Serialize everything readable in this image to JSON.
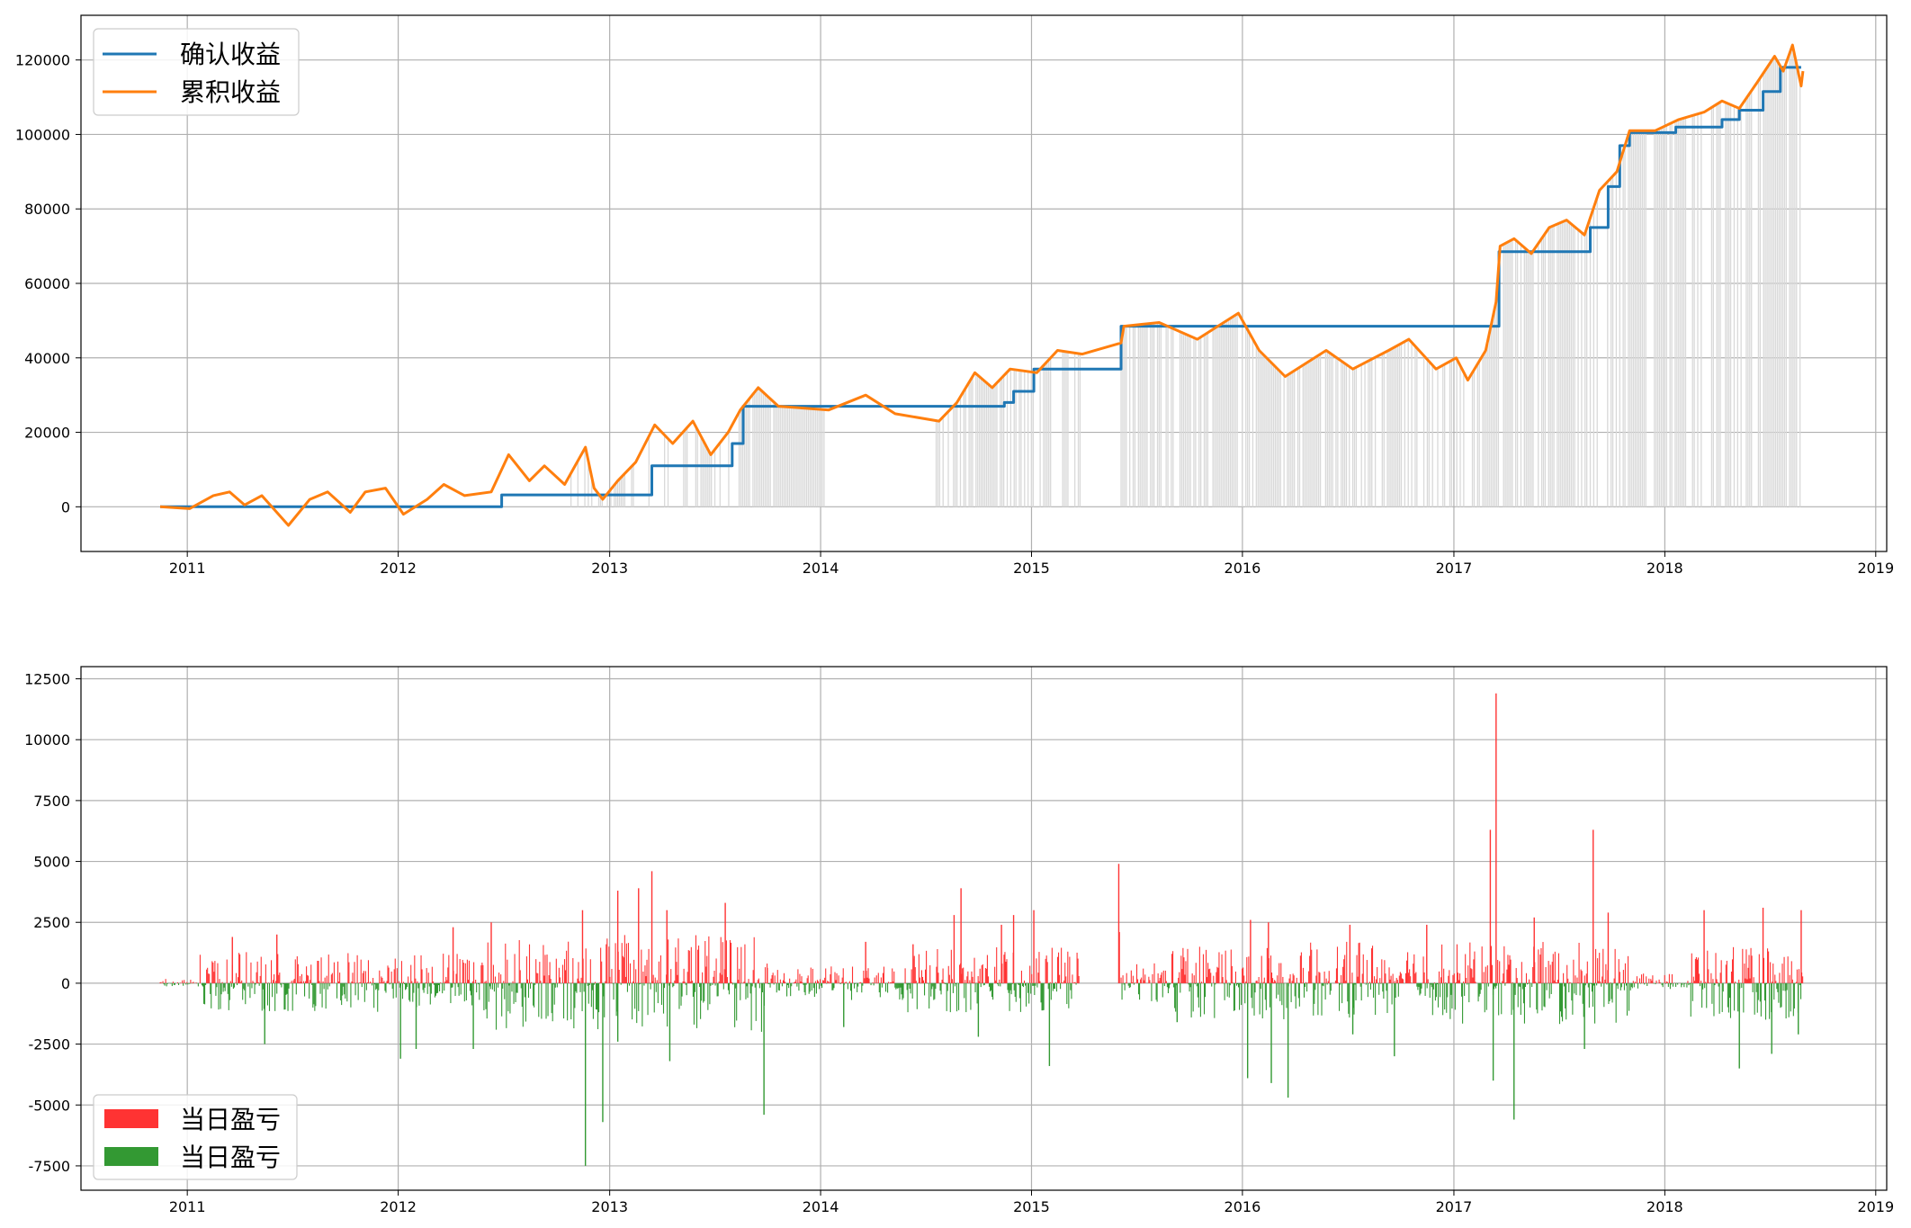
{
  "chart_data": [
    {
      "type": "line",
      "title": "",
      "xlabel": "",
      "ylabel": "",
      "x_ticks": [
        "2011",
        "2012",
        "2013",
        "2014",
        "2015",
        "2016",
        "2017",
        "2018",
        "2019"
      ],
      "y_ticks": [
        "0",
        "20000",
        "40000",
        "60000",
        "80000",
        "100000",
        "120000"
      ],
      "ylim": [
        -12000,
        132000
      ],
      "xlim": [
        "2010-07-01",
        "2019-01-20"
      ],
      "grid": true,
      "legend_position": "top-left",
      "legend": [
        {
          "label": "确认收益",
          "color": "#1f77b4"
        },
        {
          "label": "累积收益",
          "color": "#ff7f0e"
        }
      ],
      "series": [
        {
          "name": "确认收益",
          "color": "#1f77b4",
          "style": "step",
          "points": [
            [
              "2010-11-15",
              0
            ],
            [
              "2011-01-05",
              0
            ],
            [
              "2012-01-05",
              0
            ],
            [
              "2012-06-28",
              0
            ],
            [
              "2012-06-28",
              3200
            ],
            [
              "2013-03-15",
              3200
            ],
            [
              "2013-03-15",
              11000
            ],
            [
              "2013-08-01",
              11000
            ],
            [
              "2013-08-01",
              17000
            ],
            [
              "2013-08-20",
              17000
            ],
            [
              "2013-08-20",
              27000
            ],
            [
              "2014-11-15",
              27000
            ],
            [
              "2014-11-15",
              28000
            ],
            [
              "2014-12-01",
              28000
            ],
            [
              "2014-12-01",
              31000
            ],
            [
              "2015-01-05",
              31000
            ],
            [
              "2015-01-05",
              37000
            ],
            [
              "2015-06-05",
              37000
            ],
            [
              "2015-06-05",
              48500
            ],
            [
              "2017-03-20",
              48500
            ],
            [
              "2017-03-20",
              68500
            ],
            [
              "2017-08-25",
              68500
            ],
            [
              "2017-08-25",
              75000
            ],
            [
              "2017-09-25",
              75000
            ],
            [
              "2017-09-25",
              86000
            ],
            [
              "2017-10-15",
              86000
            ],
            [
              "2017-10-15",
              97000
            ],
            [
              "2017-11-01",
              97000
            ],
            [
              "2017-11-01",
              100500
            ],
            [
              "2018-01-20",
              100500
            ],
            [
              "2018-01-20",
              102000
            ],
            [
              "2018-04-10",
              102000
            ],
            [
              "2018-04-10",
              104000
            ],
            [
              "2018-05-10",
              104000
            ],
            [
              "2018-05-10",
              106500
            ],
            [
              "2018-06-20",
              106500
            ],
            [
              "2018-06-20",
              111500
            ],
            [
              "2018-07-20",
              111500
            ],
            [
              "2018-07-20",
              118000
            ],
            [
              "2018-08-25",
              118000
            ]
          ]
        },
        {
          "name": "累积收益",
          "color": "#ff7f0e",
          "style": "line",
          "points": [
            [
              "2010-11-15",
              0
            ],
            [
              "2011-01-05",
              -500
            ],
            [
              "2011-02-15",
              3000
            ],
            [
              "2011-03-15",
              4000
            ],
            [
              "2011-04-10",
              500
            ],
            [
              "2011-05-10",
              3000
            ],
            [
              "2011-06-25",
              -5000
            ],
            [
              "2011-08-01",
              2000
            ],
            [
              "2011-09-01",
              4000
            ],
            [
              "2011-10-10",
              -1500
            ],
            [
              "2011-11-05",
              4000
            ],
            [
              "2011-12-10",
              5000
            ],
            [
              "2012-01-10",
              -2000
            ],
            [
              "2012-02-20",
              2000
            ],
            [
              "2012-03-20",
              6000
            ],
            [
              "2012-04-25",
              3000
            ],
            [
              "2012-06-10",
              4000
            ],
            [
              "2012-07-10",
              14000
            ],
            [
              "2012-08-15",
              7000
            ],
            [
              "2012-09-10",
              11000
            ],
            [
              "2012-10-15",
              6000
            ],
            [
              "2012-11-20",
              16000
            ],
            [
              "2012-12-05",
              5000
            ],
            [
              "2012-12-20",
              2000
            ],
            [
              "2013-01-15",
              7000
            ],
            [
              "2013-02-15",
              12000
            ],
            [
              "2013-03-20",
              22000
            ],
            [
              "2013-04-20",
              17000
            ],
            [
              "2013-05-25",
              23000
            ],
            [
              "2013-06-25",
              14000
            ],
            [
              "2013-07-25",
              20000
            ],
            [
              "2013-08-15",
              26000
            ],
            [
              "2013-09-15",
              32000
            ],
            [
              "2013-10-20",
              27000
            ],
            [
              "2014-01-15",
              26000
            ],
            [
              "2014-03-20",
              30000
            ],
            [
              "2014-05-10",
              25000
            ],
            [
              "2014-07-25",
              23000
            ],
            [
              "2014-08-25",
              28000
            ],
            [
              "2014-09-25",
              36000
            ],
            [
              "2014-10-25",
              32000
            ],
            [
              "2014-11-25",
              37000
            ],
            [
              "2015-01-10",
              36000
            ],
            [
              "2015-02-15",
              42000
            ],
            [
              "2015-03-30",
              41000
            ],
            [
              "2015-06-05",
              44000
            ],
            [
              "2015-06-10",
              48500
            ],
            [
              "2015-08-10",
              49500
            ],
            [
              "2015-10-15",
              45000
            ],
            [
              "2015-12-25",
              52000
            ],
            [
              "2016-01-30",
              42000
            ],
            [
              "2016-03-15",
              35000
            ],
            [
              "2016-05-25",
              42000
            ],
            [
              "2016-07-10",
              37000
            ],
            [
              "2016-09-10",
              42000
            ],
            [
              "2016-10-15",
              45000
            ],
            [
              "2016-12-01",
              37000
            ],
            [
              "2017-01-05",
              40000
            ],
            [
              "2017-01-25",
              34000
            ],
            [
              "2017-02-25",
              42000
            ],
            [
              "2017-03-15",
              55000
            ],
            [
              "2017-03-22",
              70000
            ],
            [
              "2017-04-15",
              72000
            ],
            [
              "2017-05-15",
              68000
            ],
            [
              "2017-06-15",
              75000
            ],
            [
              "2017-07-15",
              77000
            ],
            [
              "2017-08-15",
              73000
            ],
            [
              "2017-09-10",
              85000
            ],
            [
              "2017-10-10",
              90000
            ],
            [
              "2017-11-01",
              101000
            ],
            [
              "2017-12-15",
              101000
            ],
            [
              "2018-01-25",
              104000
            ],
            [
              "2018-03-10",
              106000
            ],
            [
              "2018-04-10",
              109000
            ],
            [
              "2018-05-10",
              107000
            ],
            [
              "2018-06-10",
              114000
            ],
            [
              "2018-07-10",
              121000
            ],
            [
              "2018-07-25",
              117000
            ],
            [
              "2018-08-10",
              124000
            ],
            [
              "2018-08-25",
              113000
            ],
            [
              "2018-08-28",
              117000
            ]
          ]
        }
      ]
    },
    {
      "type": "bar",
      "title": "",
      "xlabel": "",
      "ylabel": "",
      "x_ticks": [
        "2011",
        "2012",
        "2013",
        "2014",
        "2015",
        "2016",
        "2017",
        "2018",
        "2019"
      ],
      "y_ticks": [
        "-7500",
        "-5000",
        "-2500",
        "0",
        "2500",
        "5000",
        "7500",
        "10000",
        "12500"
      ],
      "ylim": [
        -8500,
        13000
      ],
      "xlim": [
        "2010-07-01",
        "2019-01-20"
      ],
      "grid": true,
      "legend_position": "bottom-left",
      "legend": [
        {
          "label": "当日盈亏",
          "color": "#ff3333"
        },
        {
          "label": "当日盈亏",
          "color": "#339933"
        }
      ],
      "series": [
        {
          "name": "当日盈亏",
          "color": "#ff3333",
          "points": [
            [
              "2011-03-20",
              1900
            ],
            [
              "2011-06-05",
              2000
            ],
            [
              "2012-04-05",
              2300
            ],
            [
              "2012-06-10",
              2500
            ],
            [
              "2012-11-15",
              3000
            ],
            [
              "2013-01-15",
              3800
            ],
            [
              "2013-02-20",
              3900
            ],
            [
              "2013-03-15",
              4600
            ],
            [
              "2013-04-10",
              3000
            ],
            [
              "2013-07-20",
              3300
            ],
            [
              "2014-03-20",
              1700
            ],
            [
              "2014-06-10",
              1600
            ],
            [
              "2014-08-20",
              2800
            ],
            [
              "2014-09-01",
              3900
            ],
            [
              "2014-11-10",
              2400
            ],
            [
              "2014-12-01",
              2800
            ],
            [
              "2015-01-05",
              3000
            ],
            [
              "2015-06-01",
              4900
            ],
            [
              "2015-06-02",
              2100
            ],
            [
              "2016-01-15",
              2600
            ],
            [
              "2016-02-15",
              2500
            ],
            [
              "2016-07-05",
              2400
            ],
            [
              "2016-11-15",
              2400
            ],
            [
              "2017-03-05",
              6300
            ],
            [
              "2017-03-15",
              11900
            ],
            [
              "2017-05-20",
              2700
            ],
            [
              "2017-08-30",
              6300
            ],
            [
              "2017-09-25",
              2900
            ],
            [
              "2018-03-10",
              3000
            ],
            [
              "2018-06-20",
              3100
            ],
            [
              "2018-08-25",
              3000
            ]
          ]
        },
        {
          "name": "当日盈亏",
          "color": "#339933",
          "points": [
            [
              "2011-05-15",
              -2500
            ],
            [
              "2012-01-05",
              -3100
            ],
            [
              "2012-02-01",
              -2700
            ],
            [
              "2012-05-10",
              -2700
            ],
            [
              "2012-11-20",
              -7500
            ],
            [
              "2012-12-20",
              -5700
            ],
            [
              "2013-01-15",
              -2400
            ],
            [
              "2013-04-15",
              -3200
            ],
            [
              "2013-09-25",
              -5400
            ],
            [
              "2014-02-10",
              -1800
            ],
            [
              "2014-10-01",
              -2200
            ],
            [
              "2015-02-01",
              -3400
            ],
            [
              "2015-09-10",
              -1600
            ],
            [
              "2016-01-10",
              -3900
            ],
            [
              "2016-02-20",
              -4100
            ],
            [
              "2016-03-20",
              -4700
            ],
            [
              "2016-07-10",
              -2100
            ],
            [
              "2016-09-20",
              -3000
            ],
            [
              "2017-03-10",
              -4000
            ],
            [
              "2017-04-15",
              -5600
            ],
            [
              "2017-08-15",
              -2700
            ],
            [
              "2018-05-10",
              -3500
            ],
            [
              "2018-07-05",
              -2900
            ],
            [
              "2018-08-20",
              -2100
            ]
          ]
        }
      ]
    }
  ]
}
